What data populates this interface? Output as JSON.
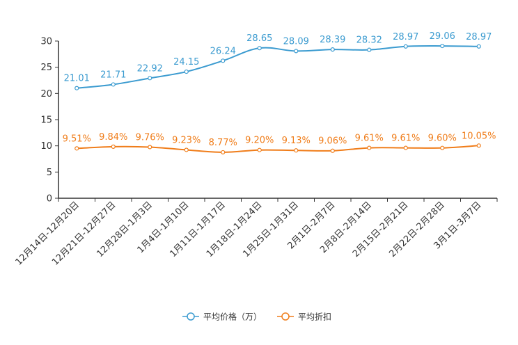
{
  "chart_data": {
    "type": "line",
    "title": "",
    "xlabel": "",
    "ylabel": "",
    "ylim": [
      0,
      30
    ],
    "yticks": [
      0,
      5,
      10,
      15,
      20,
      25,
      30
    ],
    "grid": false,
    "legend_position": "bottom",
    "categories": [
      "12月14日-12月20日",
      "12月21日-12月27日",
      "12月28日-1月3日",
      "1月4日-1月10日",
      "1月11日-1月17日",
      "1月18日-1月24日",
      "1月25日-1月31日",
      "2月1日-2月7日",
      "2月8日-2月14日",
      "2月15日-2月21日",
      "2月22日-2月28日",
      "3月1日-3月7日"
    ],
    "series": [
      {
        "name": "平均价格（万）",
        "color": "#3b9bd0",
        "values": [
          21.01,
          21.71,
          22.92,
          24.15,
          26.24,
          28.65,
          28.09,
          28.39,
          28.32,
          28.97,
          29.06,
          28.97
        ],
        "labels": [
          "21.01",
          "21.71",
          "22.92",
          "24.15",
          "26.24",
          "28.65",
          "28.09",
          "28.39",
          "28.32",
          "28.97",
          "29.06",
          "28.97"
        ]
      },
      {
        "name": "平均折扣",
        "color": "#f07d1a",
        "values": [
          9.51,
          9.84,
          9.76,
          9.23,
          8.77,
          9.2,
          9.13,
          9.06,
          9.61,
          9.61,
          9.6,
          10.05
        ],
        "labels": [
          "9.51%",
          "9.84%",
          "9.76%",
          "9.23%",
          "8.77%",
          "9.20%",
          "9.13%",
          "9.06%",
          "9.61%",
          "9.61%",
          "9.60%",
          "10.05%"
        ]
      }
    ]
  }
}
